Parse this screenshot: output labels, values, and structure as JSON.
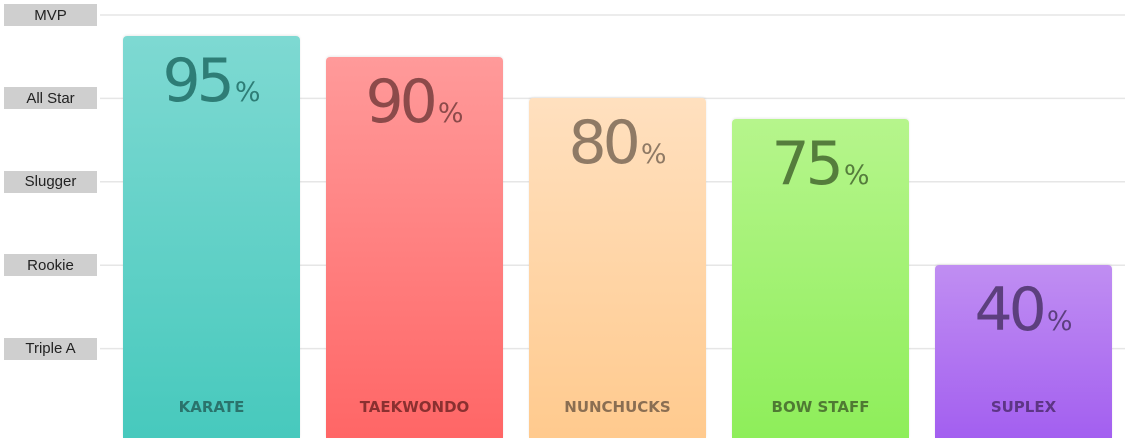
{
  "chart_data": {
    "type": "bar",
    "title": "",
    "xlabel": "",
    "ylabel": "",
    "ylim": [
      0,
      100
    ],
    "unit": "%",
    "y_levels": [
      {
        "label": "MVP",
        "value": 100
      },
      {
        "label": "All Star",
        "value": 80
      },
      {
        "label": "Slugger",
        "value": 60
      },
      {
        "label": "Rookie",
        "value": 40
      },
      {
        "label": "Triple A",
        "value": 20
      }
    ],
    "categories": [
      "KARATE",
      "TAEKWONDO",
      "NUNCHUCKS",
      "BOW STAFF",
      "SUPLEX"
    ],
    "values": [
      95,
      90,
      80,
      75,
      40
    ],
    "colors": [
      {
        "top": "#7ed9d2",
        "bottom": "#47c9bd",
        "text": "#2e7d76",
        "label": "#2a736c"
      },
      {
        "top": "#ff9a9a",
        "bottom": "#ff6666",
        "text": "#8c4a4a",
        "label": "#8a3030"
      },
      {
        "top": "#ffe0bf",
        "bottom": "#ffca8e",
        "text": "#8f7a65",
        "label": "#8a6e52"
      },
      {
        "top": "#b6f58c",
        "bottom": "#8eee5a",
        "text": "#557d3c",
        "label": "#4f7a33"
      },
      {
        "top": "#c08ef2",
        "bottom": "#a35ff0",
        "text": "#5c3f7e",
        "label": "#5d3585"
      }
    ],
    "grid": true,
    "legend": "none"
  }
}
